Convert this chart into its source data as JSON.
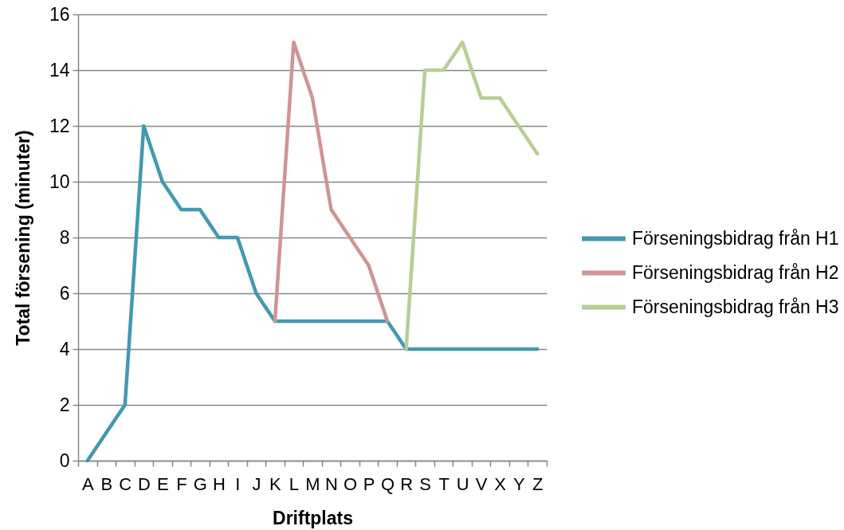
{
  "chart_data": {
    "type": "line",
    "xlabel": "Driftplats",
    "ylabel": "Total försening (minuter)",
    "categories": [
      "A",
      "B",
      "C",
      "D",
      "E",
      "F",
      "G",
      "H",
      "I",
      "J",
      "K",
      "L",
      "M",
      "N",
      "O",
      "P",
      "Q",
      "R",
      "S",
      "T",
      "U",
      "V",
      "X",
      "Y",
      "Z"
    ],
    "ylim": [
      0,
      16
    ],
    "yticks": [
      0,
      2,
      4,
      6,
      8,
      10,
      12,
      14,
      16
    ],
    "grid": "y",
    "legend": "right",
    "line_style": "solid",
    "series": [
      {
        "name": "Förseningsbidrag från H1",
        "color": "#4299b2",
        "values": [
          0,
          1,
          2,
          12,
          10,
          9,
          9,
          8,
          8,
          6,
          5,
          5,
          5,
          5,
          5,
          5,
          5,
          4,
          4,
          4,
          4,
          4,
          4,
          4,
          4
        ]
      },
      {
        "name": "Förseningsbidrag från H2",
        "color": "#d09494",
        "values": [
          null,
          null,
          null,
          null,
          null,
          null,
          null,
          null,
          null,
          null,
          5,
          15,
          13,
          9,
          8,
          7,
          5,
          null,
          null,
          null,
          null,
          null,
          null,
          null,
          null
        ]
      },
      {
        "name": "Förseningsbidrag från H3",
        "color": "#b9cd94",
        "values": [
          null,
          null,
          null,
          null,
          null,
          null,
          null,
          null,
          null,
          null,
          null,
          null,
          null,
          null,
          null,
          null,
          null,
          4,
          14,
          14,
          15,
          13,
          13,
          12,
          11
        ]
      }
    ]
  }
}
